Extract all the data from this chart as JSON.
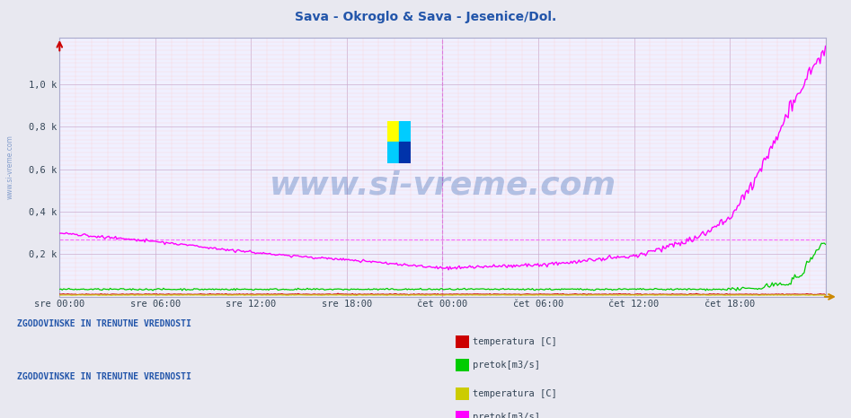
{
  "title": "Sava - Okroglo & Sava - Jesenice/Dol.",
  "title_color": "#2255aa",
  "bg_color": "#e8e8f0",
  "plot_bg_color": "#f0f0ff",
  "ylabel": "",
  "xlabel": "",
  "ytick_labels": [
    "0,2 k",
    "0,4 k",
    "0,6 k",
    "0,8 k",
    "1,0 k"
  ],
  "ytick_values": [
    200,
    400,
    600,
    800,
    1000
  ],
  "ylim": [
    0,
    1220
  ],
  "xtick_labels": [
    "sre 00:00",
    "sre 06:00",
    "sre 12:00",
    "sre 18:00",
    "čet 00:00",
    "čet 06:00",
    "čet 12:00",
    "čet 18:00"
  ],
  "xtick_positions": [
    0,
    6,
    12,
    18,
    24,
    30,
    36,
    42
  ],
  "watermark_text": "www.si-vreme.com",
  "watermark_color": "#2255aa",
  "watermark_alpha": 0.3,
  "sidebar_text": "www.si-vreme.com",
  "sidebar_color": "#2255aa",
  "vline_x": 24,
  "vline_color": "#ff00ff",
  "hline_y": 270,
  "hline_color": "#ff00ff",
  "legend1_title": "ZGODOVINSKE IN TRENUTNE VREDNOSTI",
  "legend2_title": "ZGODOVINSKE IN TRENUTNE VREDNOSTI",
  "legend1_items": [
    {
      "label": "temperatura [C]",
      "color": "#cc0000"
    },
    {
      "label": "pretok[m3/s]",
      "color": "#00cc00"
    }
  ],
  "legend2_items": [
    {
      "label": "temperatura [C]",
      "color": "#cccc00"
    },
    {
      "label": "pretok[m3/s]",
      "color": "#ff00ff"
    }
  ]
}
